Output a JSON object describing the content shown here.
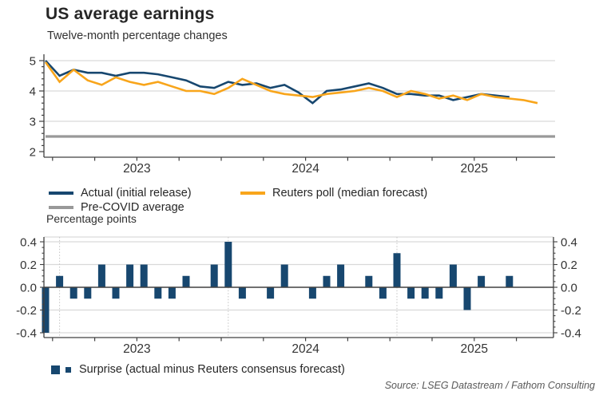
{
  "header": {
    "title": "US average earnings",
    "subtitle": "Twelve-month percentage changes"
  },
  "colors": {
    "actual": "#17476F",
    "poll": "#F8A51B",
    "precovid": "#999999",
    "surprise_bar": "#17476F",
    "grid": "#D9D9D9",
    "axis": "#404040",
    "year_dotted": "#C4C4C4",
    "text": "#262626",
    "source_text": "#595959"
  },
  "legend_top": {
    "items": [
      {
        "label": "Actual (initial release)",
        "color": "#17476F"
      },
      {
        "label": "Reuters poll (median forecast)",
        "color": "#F8A51B"
      },
      {
        "label": "Pre-COVID average",
        "color": "#999999"
      }
    ]
  },
  "legend_bottom": {
    "label": "Surprise (actual minus Reuters consensus forecast)",
    "color": "#17476F"
  },
  "source": "Source: LSEG Datastream / Fathom Consulting",
  "chart_data": [
    {
      "type": "line",
      "title": "US average earnings",
      "subtitle": "Twelve-month percentage changes",
      "x": [
        "2022-12",
        "2023-01",
        "2023-02",
        "2023-03",
        "2023-04",
        "2023-05",
        "2023-06",
        "2023-07",
        "2023-08",
        "2023-09",
        "2023-10",
        "2023-11",
        "2023-12",
        "2024-01",
        "2024-02",
        "2024-03",
        "2024-04",
        "2024-05",
        "2024-06",
        "2024-07",
        "2024-08",
        "2024-09",
        "2024-10",
        "2024-11",
        "2024-12",
        "2025-01",
        "2025-02",
        "2025-03",
        "2025-04",
        "2025-05",
        "2025-06",
        "2025-07",
        "2025-08",
        "2025-09",
        "2025-10",
        "2025-11"
      ],
      "series": [
        {
          "name": "Actual (initial release)",
          "color": "#17476F",
          "values": [
            5.0,
            4.5,
            4.7,
            4.6,
            4.6,
            4.5,
            4.6,
            4.6,
            4.55,
            4.45,
            4.35,
            4.15,
            4.1,
            4.3,
            4.2,
            4.25,
            4.1,
            4.2,
            3.95,
            3.6,
            4.0,
            4.05,
            4.15,
            4.25,
            4.1,
            3.9,
            3.9,
            3.85,
            3.85,
            3.7,
            3.8,
            3.9,
            3.85,
            3.8
          ]
        },
        {
          "name": "Reuters poll (median forecast)",
          "color": "#F8A51B",
          "values": [
            4.95,
            4.3,
            4.7,
            4.35,
            4.2,
            4.45,
            4.3,
            4.2,
            4.3,
            4.15,
            4.0,
            4.0,
            3.9,
            4.1,
            4.4,
            4.2,
            4.0,
            3.9,
            3.85,
            3.8,
            3.9,
            3.95,
            4.0,
            4.1,
            4.0,
            3.8,
            4.0,
            3.9,
            3.75,
            3.85,
            3.7,
            3.9,
            3.8,
            3.75,
            3.7,
            3.6
          ]
        },
        {
          "name": "Pre-COVID average",
          "color": "#999999",
          "constant": 2.5
        }
      ],
      "ylim": [
        2,
        5
      ],
      "yticks": [
        2,
        3,
        4,
        5
      ],
      "x_year_labels": [
        "2023",
        "2024",
        "2025"
      ],
      "grid": "horizontal",
      "legend_position": "bottom"
    },
    {
      "type": "bar",
      "name": "Surprise (actual minus Reuters consensus forecast)",
      "ylabel": "Percentage points",
      "color": "#17476F",
      "x": [
        "2022-12",
        "2023-01",
        "2023-02",
        "2023-03",
        "2023-04",
        "2023-05",
        "2023-06",
        "2023-07",
        "2023-08",
        "2023-09",
        "2023-10",
        "2023-11",
        "2023-12",
        "2024-01",
        "2024-02",
        "2024-03",
        "2024-04",
        "2024-05",
        "2024-06",
        "2024-07",
        "2024-08",
        "2024-09",
        "2024-10",
        "2024-11",
        "2024-12",
        "2025-01",
        "2025-02",
        "2025-03",
        "2025-04",
        "2025-05",
        "2025-06",
        "2025-07",
        "2025-08",
        "2025-09"
      ],
      "values": [
        -0.4,
        0.1,
        -0.1,
        -0.1,
        0.2,
        -0.1,
        0.2,
        0.2,
        -0.1,
        -0.1,
        0.1,
        0,
        0.2,
        0.4,
        -0.1,
        0,
        -0.1,
        0.2,
        0,
        -0.1,
        0.1,
        0.2,
        0,
        0.1,
        -0.1,
        0.3,
        -0.1,
        -0.1,
        -0.1,
        0.2,
        -0.2,
        0.1,
        0,
        0.1
      ],
      "ylim": [
        -0.4,
        0.4
      ],
      "yticks": [
        0.4,
        0.2,
        0,
        -0.2,
        -0.4
      ],
      "ytick_labels": [
        "0.4",
        "0.2",
        "0.0",
        "-0.2",
        "-0.4"
      ],
      "x_year_labels": [
        "2023",
        "2024",
        "2025"
      ],
      "year_start_indices": [
        1,
        13,
        25
      ],
      "dual_y_axis": true
    }
  ]
}
